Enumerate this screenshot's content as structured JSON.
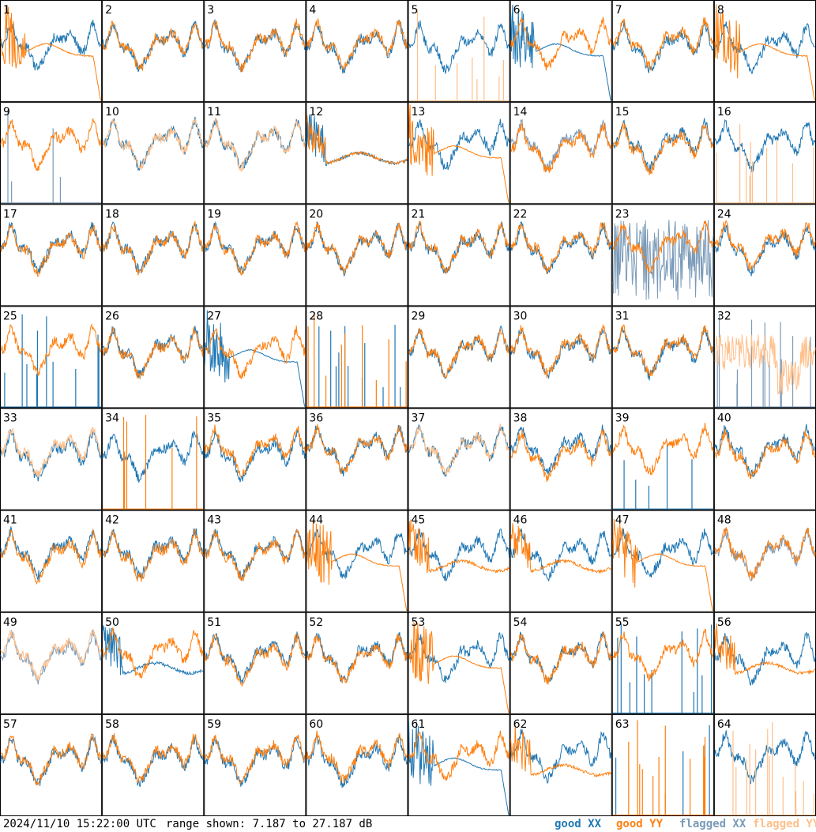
{
  "chart_data": {
    "type": "line",
    "panel_count": 64,
    "panel_labels": [
      "1",
      "2",
      "3",
      "4",
      "5",
      "6",
      "7",
      "8",
      "9",
      "10",
      "11",
      "12",
      "13",
      "14",
      "15",
      "16",
      "17",
      "18",
      "19",
      "20",
      "21",
      "22",
      "23",
      "24",
      "25",
      "26",
      "27",
      "28",
      "29",
      "30",
      "31",
      "32",
      "33",
      "34",
      "35",
      "36",
      "37",
      "38",
      "39",
      "40",
      "41",
      "42",
      "43",
      "44",
      "45",
      "46",
      "47",
      "48",
      "49",
      "50",
      "51",
      "52",
      "53",
      "54",
      "55",
      "56",
      "57",
      "58",
      "59",
      "60",
      "61",
      "62",
      "63",
      "64"
    ],
    "range_min_db": 7.187,
    "range_max_db": 27.187,
    "series": [
      {
        "name": "good XX",
        "color": "#1f77b4"
      },
      {
        "name": "good YY",
        "color": "#ff7f0e"
      },
      {
        "name": "flagged XX",
        "color": "#7a9ab8"
      },
      {
        "name": "flagged YY",
        "color": "#ffbf8a"
      }
    ],
    "panel_styles": {
      "1": {
        "xx": "good",
        "yy": "bad_yy",
        "yy_style": "good"
      },
      "5": {
        "xx": "good",
        "yy_style": "spikes",
        "yy_flag": "flagged"
      },
      "6": {
        "xx": "bad_xx",
        "yy": "good"
      },
      "8": {
        "xx": "good",
        "yy": "bad_yy"
      },
      "9": {
        "xx_style": "spikes",
        "xx_flag": "flagged",
        "yy": "good"
      },
      "10": {
        "xx": "good",
        "yy_flag": "flagged"
      },
      "11": {
        "xx": "good",
        "yy_flag": "flagged"
      },
      "12": {
        "xx": "bad_xx_mid",
        "yy": "bad_yy_mid"
      },
      "13": {
        "xx": "good",
        "yy": "bad_yy"
      },
      "14": {
        "xx_flag": "flagged",
        "yy": "good"
      },
      "16": {
        "xx": "good",
        "yy_style": "spikes",
        "yy_flag": "flagged"
      },
      "23": {
        "xx_style": "noise",
        "xx_flag": "flagged",
        "yy": "good"
      },
      "25": {
        "xx_style": "spikes",
        "yy": "good"
      },
      "27": {
        "xx": "bad_xx",
        "yy": "good"
      },
      "28": {
        "xx_style": "spikes",
        "yy_style": "spikes"
      },
      "32": {
        "xx_style": "spikes",
        "xx_flag": "flagged",
        "yy_flag": "flagged",
        "yy_style": "spiky"
      },
      "33": {
        "xx": "good",
        "yy_flag": "flagged"
      },
      "34": {
        "xx": "good",
        "yy_style": "spikes"
      },
      "37": {
        "xx": "good",
        "yy_flag": "flagged"
      },
      "39": {
        "xx_style": "spikes",
        "yy": "good"
      },
      "44": {
        "xx": "good",
        "yy": "bad_yy"
      },
      "45": {
        "xx": "good",
        "yy": "bad_yy_mid"
      },
      "46": {
        "xx": "good",
        "yy": "bad_yy_mid"
      },
      "47": {
        "xx": "good",
        "yy": "bad_yy"
      },
      "48": {
        "xx_flag": "flagged",
        "yy": "good"
      },
      "49": {
        "xx_flag": "flagged",
        "yy_flag": "flagged"
      },
      "50": {
        "xx": "bad_xx_mid",
        "yy": "good"
      },
      "53": {
        "xx": "good",
        "yy": "bad_yy"
      },
      "55": {
        "xx_style": "spikes",
        "yy": "good"
      },
      "56": {
        "xx": "good",
        "yy": "bad_yy_mid"
      },
      "61": {
        "xx": "bad_xx",
        "yy": "good"
      },
      "62": {
        "xx": "good",
        "yy": "bad_yy_mid"
      },
      "63": {
        "xx_style": "spikes",
        "yy_style": "spikes"
      },
      "64": {
        "xx": "good",
        "yy_style": "spikes",
        "yy_flag": "flagged"
      }
    }
  },
  "footer": {
    "timestamp": "2024/11/10 15:22:00 UTC",
    "range_text": "range shown: 7.187 to 27.187 dB",
    "legend": [
      {
        "label": "good XX",
        "color": "#1f77b4"
      },
      {
        "label": "good YY",
        "color": "#ff7f0e"
      },
      {
        "label": "flagged XX",
        "color": "#7a9ab8"
      },
      {
        "label": "flagged YY",
        "color": "#ffbf8a"
      }
    ]
  }
}
